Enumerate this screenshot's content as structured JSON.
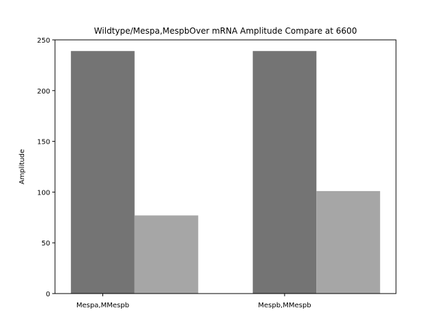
{
  "chart_data": {
    "type": "bar",
    "title": "Wildtype/Mespa,MespbOver mRNA Amplitude Compare at 6600",
    "xlabel": "",
    "ylabel": "Amplitude",
    "categories": [
      "Mespa,MMespb",
      "Mespb,MMespb"
    ],
    "series": [
      {
        "values": [
          239,
          239
        ],
        "color": "#747474"
      },
      {
        "values": [
          77,
          101
        ],
        "color": "#a6a6a6"
      }
    ],
    "ylim": [
      0,
      250
    ],
    "yticks": [
      0,
      50,
      100,
      150,
      200,
      250
    ],
    "grid": false,
    "legend": "none"
  }
}
